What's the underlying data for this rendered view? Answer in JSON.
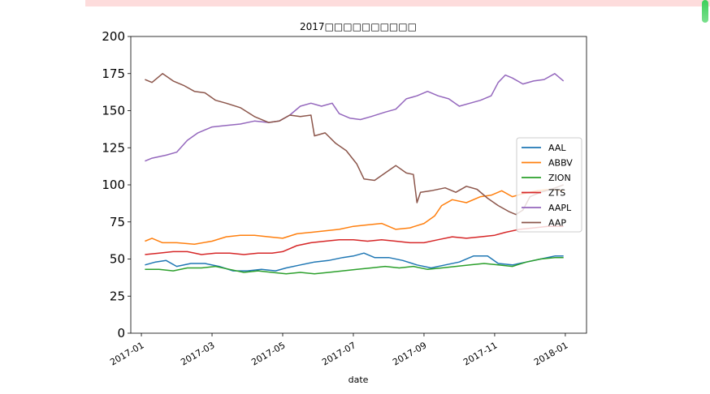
{
  "chart_data": {
    "type": "line",
    "title": "2017□□□□□□□□□□",
    "xlabel": "date",
    "ylabel": "",
    "ylim": [
      0,
      200
    ],
    "xlim_months": [
      -0.3,
      12.6
    ],
    "yticks": [
      0,
      25,
      50,
      75,
      100,
      125,
      150,
      175,
      200
    ],
    "xticks": [
      {
        "m": 0,
        "label": "2017-01"
      },
      {
        "m": 2,
        "label": "2017-03"
      },
      {
        "m": 4,
        "label": "2017-05"
      },
      {
        "m": 6,
        "label": "2017-07"
      },
      {
        "m": 8,
        "label": "2017-09"
      },
      {
        "m": 10,
        "label": "2017-11"
      },
      {
        "m": 12,
        "label": "2018-01"
      }
    ],
    "legend_position": "center-right",
    "x_units": "months since 2017-01-01",
    "series": [
      {
        "name": "AAL",
        "color": "#1f77b4",
        "points": [
          [
            0.1,
            46
          ],
          [
            0.4,
            48
          ],
          [
            0.7,
            49
          ],
          [
            1.0,
            45
          ],
          [
            1.4,
            47
          ],
          [
            1.8,
            47
          ],
          [
            2.2,
            45
          ],
          [
            2.6,
            42
          ],
          [
            3.0,
            42
          ],
          [
            3.4,
            43
          ],
          [
            3.8,
            42
          ],
          [
            4.1,
            44
          ],
          [
            4.5,
            46
          ],
          [
            4.9,
            48
          ],
          [
            5.3,
            49
          ],
          [
            5.7,
            51
          ],
          [
            6.0,
            52
          ],
          [
            6.3,
            54
          ],
          [
            6.6,
            51
          ],
          [
            7.0,
            51
          ],
          [
            7.4,
            49
          ],
          [
            7.8,
            46
          ],
          [
            8.2,
            44
          ],
          [
            8.6,
            46
          ],
          [
            9.0,
            48
          ],
          [
            9.4,
            52
          ],
          [
            9.8,
            52
          ],
          [
            10.1,
            47
          ],
          [
            10.5,
            46
          ],
          [
            10.9,
            48
          ],
          [
            11.3,
            50
          ],
          [
            11.7,
            52
          ],
          [
            11.95,
            52
          ]
        ]
      },
      {
        "name": "ABBV",
        "color": "#ff7f0e",
        "points": [
          [
            0.1,
            62
          ],
          [
            0.3,
            64
          ],
          [
            0.6,
            61
          ],
          [
            1.0,
            61
          ],
          [
            1.5,
            60
          ],
          [
            2.0,
            62
          ],
          [
            2.4,
            65
          ],
          [
            2.8,
            66
          ],
          [
            3.2,
            66
          ],
          [
            3.6,
            65
          ],
          [
            4.0,
            64
          ],
          [
            4.4,
            67
          ],
          [
            4.8,
            68
          ],
          [
            5.2,
            69
          ],
          [
            5.6,
            70
          ],
          [
            6.0,
            72
          ],
          [
            6.4,
            73
          ],
          [
            6.8,
            74
          ],
          [
            7.2,
            70
          ],
          [
            7.6,
            71
          ],
          [
            8.0,
            74
          ],
          [
            8.3,
            79
          ],
          [
            8.5,
            86
          ],
          [
            8.8,
            90
          ],
          [
            9.2,
            88
          ],
          [
            9.6,
            92
          ],
          [
            9.9,
            93
          ],
          [
            10.2,
            96
          ],
          [
            10.5,
            92
          ],
          [
            10.8,
            94
          ],
          [
            11.2,
            96
          ],
          [
            11.6,
            97
          ],
          [
            11.95,
            96
          ]
        ]
      },
      {
        "name": "ZION",
        "color": "#2ca02c",
        "points": [
          [
            0.1,
            43
          ],
          [
            0.5,
            43
          ],
          [
            0.9,
            42
          ],
          [
            1.3,
            44
          ],
          [
            1.7,
            44
          ],
          [
            2.1,
            45
          ],
          [
            2.5,
            43
          ],
          [
            2.9,
            41
          ],
          [
            3.3,
            42
          ],
          [
            3.7,
            41
          ],
          [
            4.1,
            40
          ],
          [
            4.5,
            41
          ],
          [
            4.9,
            40
          ],
          [
            5.3,
            41
          ],
          [
            5.7,
            42
          ],
          [
            6.1,
            43
          ],
          [
            6.5,
            44
          ],
          [
            6.9,
            45
          ],
          [
            7.3,
            44
          ],
          [
            7.7,
            45
          ],
          [
            8.1,
            43
          ],
          [
            8.5,
            44
          ],
          [
            8.9,
            45
          ],
          [
            9.3,
            46
          ],
          [
            9.7,
            47
          ],
          [
            10.1,
            46
          ],
          [
            10.5,
            45
          ],
          [
            10.9,
            48
          ],
          [
            11.3,
            50
          ],
          [
            11.7,
            51
          ],
          [
            11.95,
            51
          ]
        ]
      },
      {
        "name": "ZTS",
        "color": "#d62728",
        "points": [
          [
            0.1,
            53
          ],
          [
            0.5,
            54
          ],
          [
            0.9,
            55
          ],
          [
            1.3,
            55
          ],
          [
            1.7,
            53
          ],
          [
            2.1,
            54
          ],
          [
            2.5,
            54
          ],
          [
            2.9,
            53
          ],
          [
            3.3,
            54
          ],
          [
            3.7,
            54
          ],
          [
            4.0,
            55
          ],
          [
            4.4,
            59
          ],
          [
            4.8,
            61
          ],
          [
            5.2,
            62
          ],
          [
            5.6,
            63
          ],
          [
            6.0,
            63
          ],
          [
            6.4,
            62
          ],
          [
            6.8,
            63
          ],
          [
            7.2,
            62
          ],
          [
            7.6,
            61
          ],
          [
            8.0,
            61
          ],
          [
            8.4,
            63
          ],
          [
            8.8,
            65
          ],
          [
            9.2,
            64
          ],
          [
            9.6,
            65
          ],
          [
            10.0,
            66
          ],
          [
            10.3,
            68
          ],
          [
            10.7,
            70
          ],
          [
            11.1,
            71
          ],
          [
            11.5,
            72
          ],
          [
            11.95,
            72
          ]
        ]
      },
      {
        "name": "AAPL",
        "color": "#9467bd",
        "points": [
          [
            0.1,
            116
          ],
          [
            0.3,
            118
          ],
          [
            0.7,
            120
          ],
          [
            1.0,
            122
          ],
          [
            1.3,
            130
          ],
          [
            1.6,
            135
          ],
          [
            2.0,
            139
          ],
          [
            2.4,
            140
          ],
          [
            2.8,
            141
          ],
          [
            3.2,
            143
          ],
          [
            3.6,
            142
          ],
          [
            3.9,
            143
          ],
          [
            4.2,
            147
          ],
          [
            4.5,
            153
          ],
          [
            4.8,
            155
          ],
          [
            5.1,
            153
          ],
          [
            5.4,
            155
          ],
          [
            5.6,
            148
          ],
          [
            5.9,
            145
          ],
          [
            6.2,
            144
          ],
          [
            6.5,
            146
          ],
          [
            6.9,
            149
          ],
          [
            7.2,
            151
          ],
          [
            7.5,
            158
          ],
          [
            7.8,
            160
          ],
          [
            8.1,
            163
          ],
          [
            8.4,
            160
          ],
          [
            8.7,
            158
          ],
          [
            9.0,
            153
          ],
          [
            9.3,
            155
          ],
          [
            9.6,
            157
          ],
          [
            9.9,
            160
          ],
          [
            10.1,
            169
          ],
          [
            10.3,
            174
          ],
          [
            10.5,
            172
          ],
          [
            10.8,
            168
          ],
          [
            11.1,
            170
          ],
          [
            11.4,
            171
          ],
          [
            11.7,
            175
          ],
          [
            11.95,
            170
          ]
        ]
      },
      {
        "name": "AAP",
        "color": "#8c564b",
        "points": [
          [
            0.1,
            171
          ],
          [
            0.3,
            169
          ],
          [
            0.6,
            175
          ],
          [
            0.9,
            170
          ],
          [
            1.2,
            167
          ],
          [
            1.5,
            163
          ],
          [
            1.8,
            162
          ],
          [
            2.1,
            157
          ],
          [
            2.4,
            155
          ],
          [
            2.8,
            152
          ],
          [
            3.2,
            146
          ],
          [
            3.6,
            142
          ],
          [
            3.9,
            143
          ],
          [
            4.2,
            147
          ],
          [
            4.5,
            146
          ],
          [
            4.8,
            147
          ],
          [
            4.9,
            133
          ],
          [
            5.2,
            135
          ],
          [
            5.5,
            128
          ],
          [
            5.8,
            123
          ],
          [
            6.1,
            114
          ],
          [
            6.3,
            104
          ],
          [
            6.6,
            103
          ],
          [
            6.9,
            108
          ],
          [
            7.2,
            113
          ],
          [
            7.5,
            108
          ],
          [
            7.7,
            107
          ],
          [
            7.8,
            88
          ],
          [
            7.9,
            95
          ],
          [
            8.2,
            96
          ],
          [
            8.6,
            98
          ],
          [
            8.9,
            95
          ],
          [
            9.2,
            99
          ],
          [
            9.5,
            97
          ],
          [
            9.8,
            91
          ],
          [
            10.1,
            86
          ],
          [
            10.4,
            82
          ],
          [
            10.6,
            80
          ],
          [
            10.8,
            83
          ],
          [
            11.0,
            92
          ],
          [
            11.3,
            95
          ],
          [
            11.6,
            97
          ],
          [
            11.95,
            100
          ]
        ]
      }
    ]
  }
}
